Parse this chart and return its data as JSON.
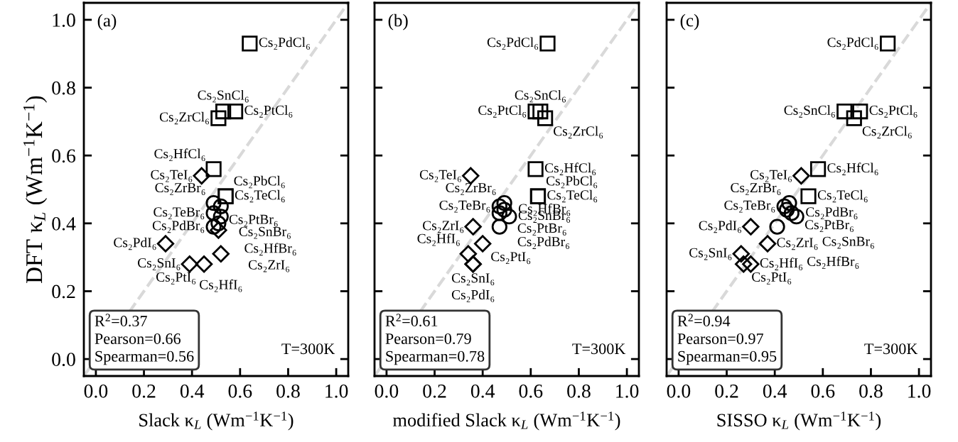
{
  "chart_data": [
    {
      "type": "scatter",
      "ylabel": "DFT κ$_{L}$ (Wm$^{−1}$K$^{−1}$)",
      "xlabel": "Slack κ$_{L}$ (Wm$^{−1}$K$^{−1}$)",
      "xlim": [
        -0.05,
        1.05
      ],
      "ylim": [
        -0.05,
        1.05
      ],
      "xticks": [
        {
          "value": 0,
          "label": "0.0"
        },
        {
          "value": 0.2,
          "label": "0.2"
        },
        {
          "value": 0.4,
          "label": "0.4"
        },
        {
          "value": 0.6,
          "label": "0.6"
        },
        {
          "value": 0.8,
          "label": "0.8"
        },
        {
          "value": 1.0,
          "label": "1.0"
        }
      ],
      "yticks": [
        {
          "value": 0,
          "label": "0.0"
        },
        {
          "value": 0.2,
          "label": "0.2"
        },
        {
          "value": 0.4,
          "label": "0.4"
        },
        {
          "value": 0.6,
          "label": "0.6"
        },
        {
          "value": 0.8,
          "label": "0.8"
        },
        {
          "value": 1.0,
          "label": "1.0"
        }
      ],
      "grid": false,
      "annotations": [
        "(a)",
        "R$^{2}$=0.37\nPearson=0.66\nSpearman=0.56",
        "T=300K"
      ],
      "series": [
        {
          "type": "line",
          "color": "#d9d9d9",
          "line_style": "dashed",
          "marker": "none",
          "x": [
            -0.05,
            1.05
          ],
          "values": [
            -0.05,
            1.05
          ]
        },
        {
          "marker": "square",
          "color": "#000000",
          "x": [
            0.64,
            0.53,
            0.58,
            0.51,
            0.49,
            0.54,
            0.54
          ],
          "values": [
            0.93,
            0.73,
            0.73,
            0.71,
            0.56,
            0.48,
            0.48
          ],
          "value_labels": [
            "Cs₂PdCl₆",
            "Cs₂SnCl₆",
            "Cs₂PtCl₆",
            "Cs₂ZrCl₆",
            "Cs₂HfCl₆",
            "Cs₂TeCl₆",
            "Cs₂PbCl₆"
          ]
        },
        {
          "marker": "circle",
          "color": "#000000",
          "x": [
            0.49,
            0.49,
            0.52,
            0.49,
            0.52,
            0.51
          ],
          "values": [
            0.46,
            0.43,
            0.45,
            0.39,
            0.42,
            0.4
          ],
          "value_labels": [
            "Cs₂ZrBr₆",
            "Cs₂TeBr₆",
            "Cs₂PtBr₆",
            "Cs₂PdBr₆",
            "Cs₂SnBr₆",
            "Cs₂HfBr₆"
          ]
        },
        {
          "marker": "diamond",
          "color": "#000000",
          "x": [
            0.44,
            0.29,
            0.51,
            0.52,
            0.39,
            0.45
          ],
          "values": [
            0.54,
            0.34,
            0.38,
            0.31,
            0.28,
            0.28
          ],
          "value_labels": [
            "Cs₂TeI₆",
            "Cs₂PdI₆",
            "Cs₂ZrI₆",
            "Cs₂HfI₆",
            "Cs₂SnI₆",
            "Cs₂PtI₆"
          ]
        }
      ]
    },
    {
      "type": "scatter",
      "xlabel": "modified Slack κ$_{L}$ (Wm$^{−1}$K$^{−1}$)",
      "tick_labels": "x",
      "xlim": [
        -0.05,
        1.05
      ],
      "ylim": [
        -0.05,
        1.05
      ],
      "xticks": [
        {
          "value": 0,
          "label": "0.0"
        },
        {
          "value": 0.2,
          "label": "0.2"
        },
        {
          "value": 0.4,
          "label": "0.4"
        },
        {
          "value": 0.6,
          "label": "0.6"
        },
        {
          "value": 0.8,
          "label": "0.8"
        },
        {
          "value": 1.0,
          "label": "1.0"
        }
      ],
      "yticks": [
        {
          "value": 0,
          "label": null
        },
        {
          "value": 0.2,
          "label": null
        },
        {
          "value": 0.4,
          "label": null
        },
        {
          "value": 0.6,
          "label": null
        },
        {
          "value": 0.8,
          "label": null
        },
        {
          "value": 1.0,
          "label": null
        }
      ],
      "grid": false,
      "annotations": [
        "(b)",
        "R$^{2}$=0.61\nPearson=0.79\nSpearman=0.78",
        "T=300K"
      ],
      "series": [
        {
          "type": "line",
          "color": "#d9d9d9",
          "line_style": "dashed",
          "marker": "none",
          "x": [
            -0.05,
            1.05
          ],
          "values": [
            -0.05,
            1.05
          ]
        },
        {
          "marker": "square",
          "color": "#000000",
          "x": [
            0.67,
            0.62,
            0.64,
            0.66,
            0.62,
            0.63,
            0.63
          ],
          "values": [
            0.93,
            0.73,
            0.73,
            0.71,
            0.56,
            0.48,
            0.48
          ],
          "value_labels": [
            "Cs₂PdCl₆",
            "Cs₂PtCl₆",
            "Cs₂SnCl₆",
            "Cs₂ZrCl₆",
            "Cs₂HfCl₆",
            "Cs₂TeCl₆",
            "Cs₂PbCl₆"
          ]
        },
        {
          "marker": "circle",
          "color": "#000000",
          "x": [
            0.49,
            0.47,
            0.47,
            0.51,
            0.47,
            0.49
          ],
          "values": [
            0.46,
            0.45,
            0.43,
            0.42,
            0.39,
            0.44
          ],
          "value_labels": [
            "Cs₂ZrBr₆",
            "Cs₂TeBr₆",
            "Cs₂PtBr₆",
            "Cs₂SnBr₆",
            "Cs₂PdBr₆",
            "Cs₂HfBr₆"
          ]
        },
        {
          "marker": "diamond",
          "color": "#000000",
          "x": [
            0.35,
            0.36,
            0.34,
            0.4,
            0.36,
            0.36
          ],
          "values": [
            0.54,
            0.39,
            0.31,
            0.34,
            0.28,
            0.28
          ],
          "value_labels": [
            "Cs₂TeI₆",
            "Cs₂ZrI₆",
            "Cs₂HfI₆",
            "Cs₂PtI₆",
            "Cs₂SnI₆",
            "Cs₂PdI₆"
          ]
        }
      ]
    },
    {
      "type": "scatter",
      "xlabel": "SISSO κ$_{L}$ (Wm$^{−1}$K$^{−1}$)",
      "tick_labels": "x",
      "xlim": [
        -0.05,
        1.05
      ],
      "ylim": [
        -0.05,
        1.05
      ],
      "xticks": [
        {
          "value": 0,
          "label": "0.0"
        },
        {
          "value": 0.2,
          "label": "0.2"
        },
        {
          "value": 0.4,
          "label": "0.4"
        },
        {
          "value": 0.6,
          "label": "0.6"
        },
        {
          "value": 0.8,
          "label": "0.8"
        },
        {
          "value": 1.0,
          "label": "1.0"
        }
      ],
      "yticks": [
        {
          "value": 0,
          "label": null
        },
        {
          "value": 0.2,
          "label": null
        },
        {
          "value": 0.4,
          "label": null
        },
        {
          "value": 0.6,
          "label": null
        },
        {
          "value": 0.8,
          "label": null
        },
        {
          "value": 1.0,
          "label": null
        }
      ],
      "grid": false,
      "annotations": [
        "(c)",
        "R$^{2}$=0.94\nPearson=0.97\nSpearman=0.95",
        "T=300K"
      ],
      "series": [
        {
          "type": "line",
          "color": "#d9d9d9",
          "line_style": "dashed",
          "marker": "none",
          "x": [
            -0.05,
            1.05
          ],
          "values": [
            -0.05,
            1.05
          ]
        },
        {
          "marker": "square",
          "color": "#000000",
          "x": [
            0.87,
            0.69,
            0.755,
            0.73,
            0.58,
            0.54
          ],
          "values": [
            0.93,
            0.73,
            0.73,
            0.71,
            0.56,
            0.48
          ],
          "value_labels": [
            "Cs₂PdCl₆",
            "Cs₂SnCl₆",
            "Cs₂PtCl₆",
            "Cs₂ZrCl₆",
            "Cs₂HfCl₆",
            "Cs₂TeCl₆"
          ]
        },
        {
          "marker": "circle",
          "color": "#000000",
          "x": [
            0.46,
            0.44,
            0.45,
            0.47,
            0.49,
            0.41
          ],
          "values": [
            0.46,
            0.45,
            0.44,
            0.43,
            0.42,
            0.39
          ],
          "value_labels": [
            "Cs₂ZrBr₆",
            "Cs₂TeBr₆",
            "Cs₂PtBr₆",
            "Cs₂PdBr₆",
            "Cs₂SnBr₆",
            "Cs₂HfBr₆"
          ]
        },
        {
          "marker": "diamond",
          "color": "#000000",
          "x": [
            0.51,
            0.3,
            0.37,
            0.26,
            0.27,
            0.3
          ],
          "values": [
            0.54,
            0.39,
            0.34,
            0.31,
            0.28,
            0.28
          ],
          "value_labels": [
            "Cs₂TeI₆",
            "Cs₂PdI₆",
            "Cs₂ZrI₆",
            "Cs₂SnI₆",
            "Cs₂PtI₆",
            "Cs₂HfI₆"
          ]
        }
      ]
    }
  ]
}
